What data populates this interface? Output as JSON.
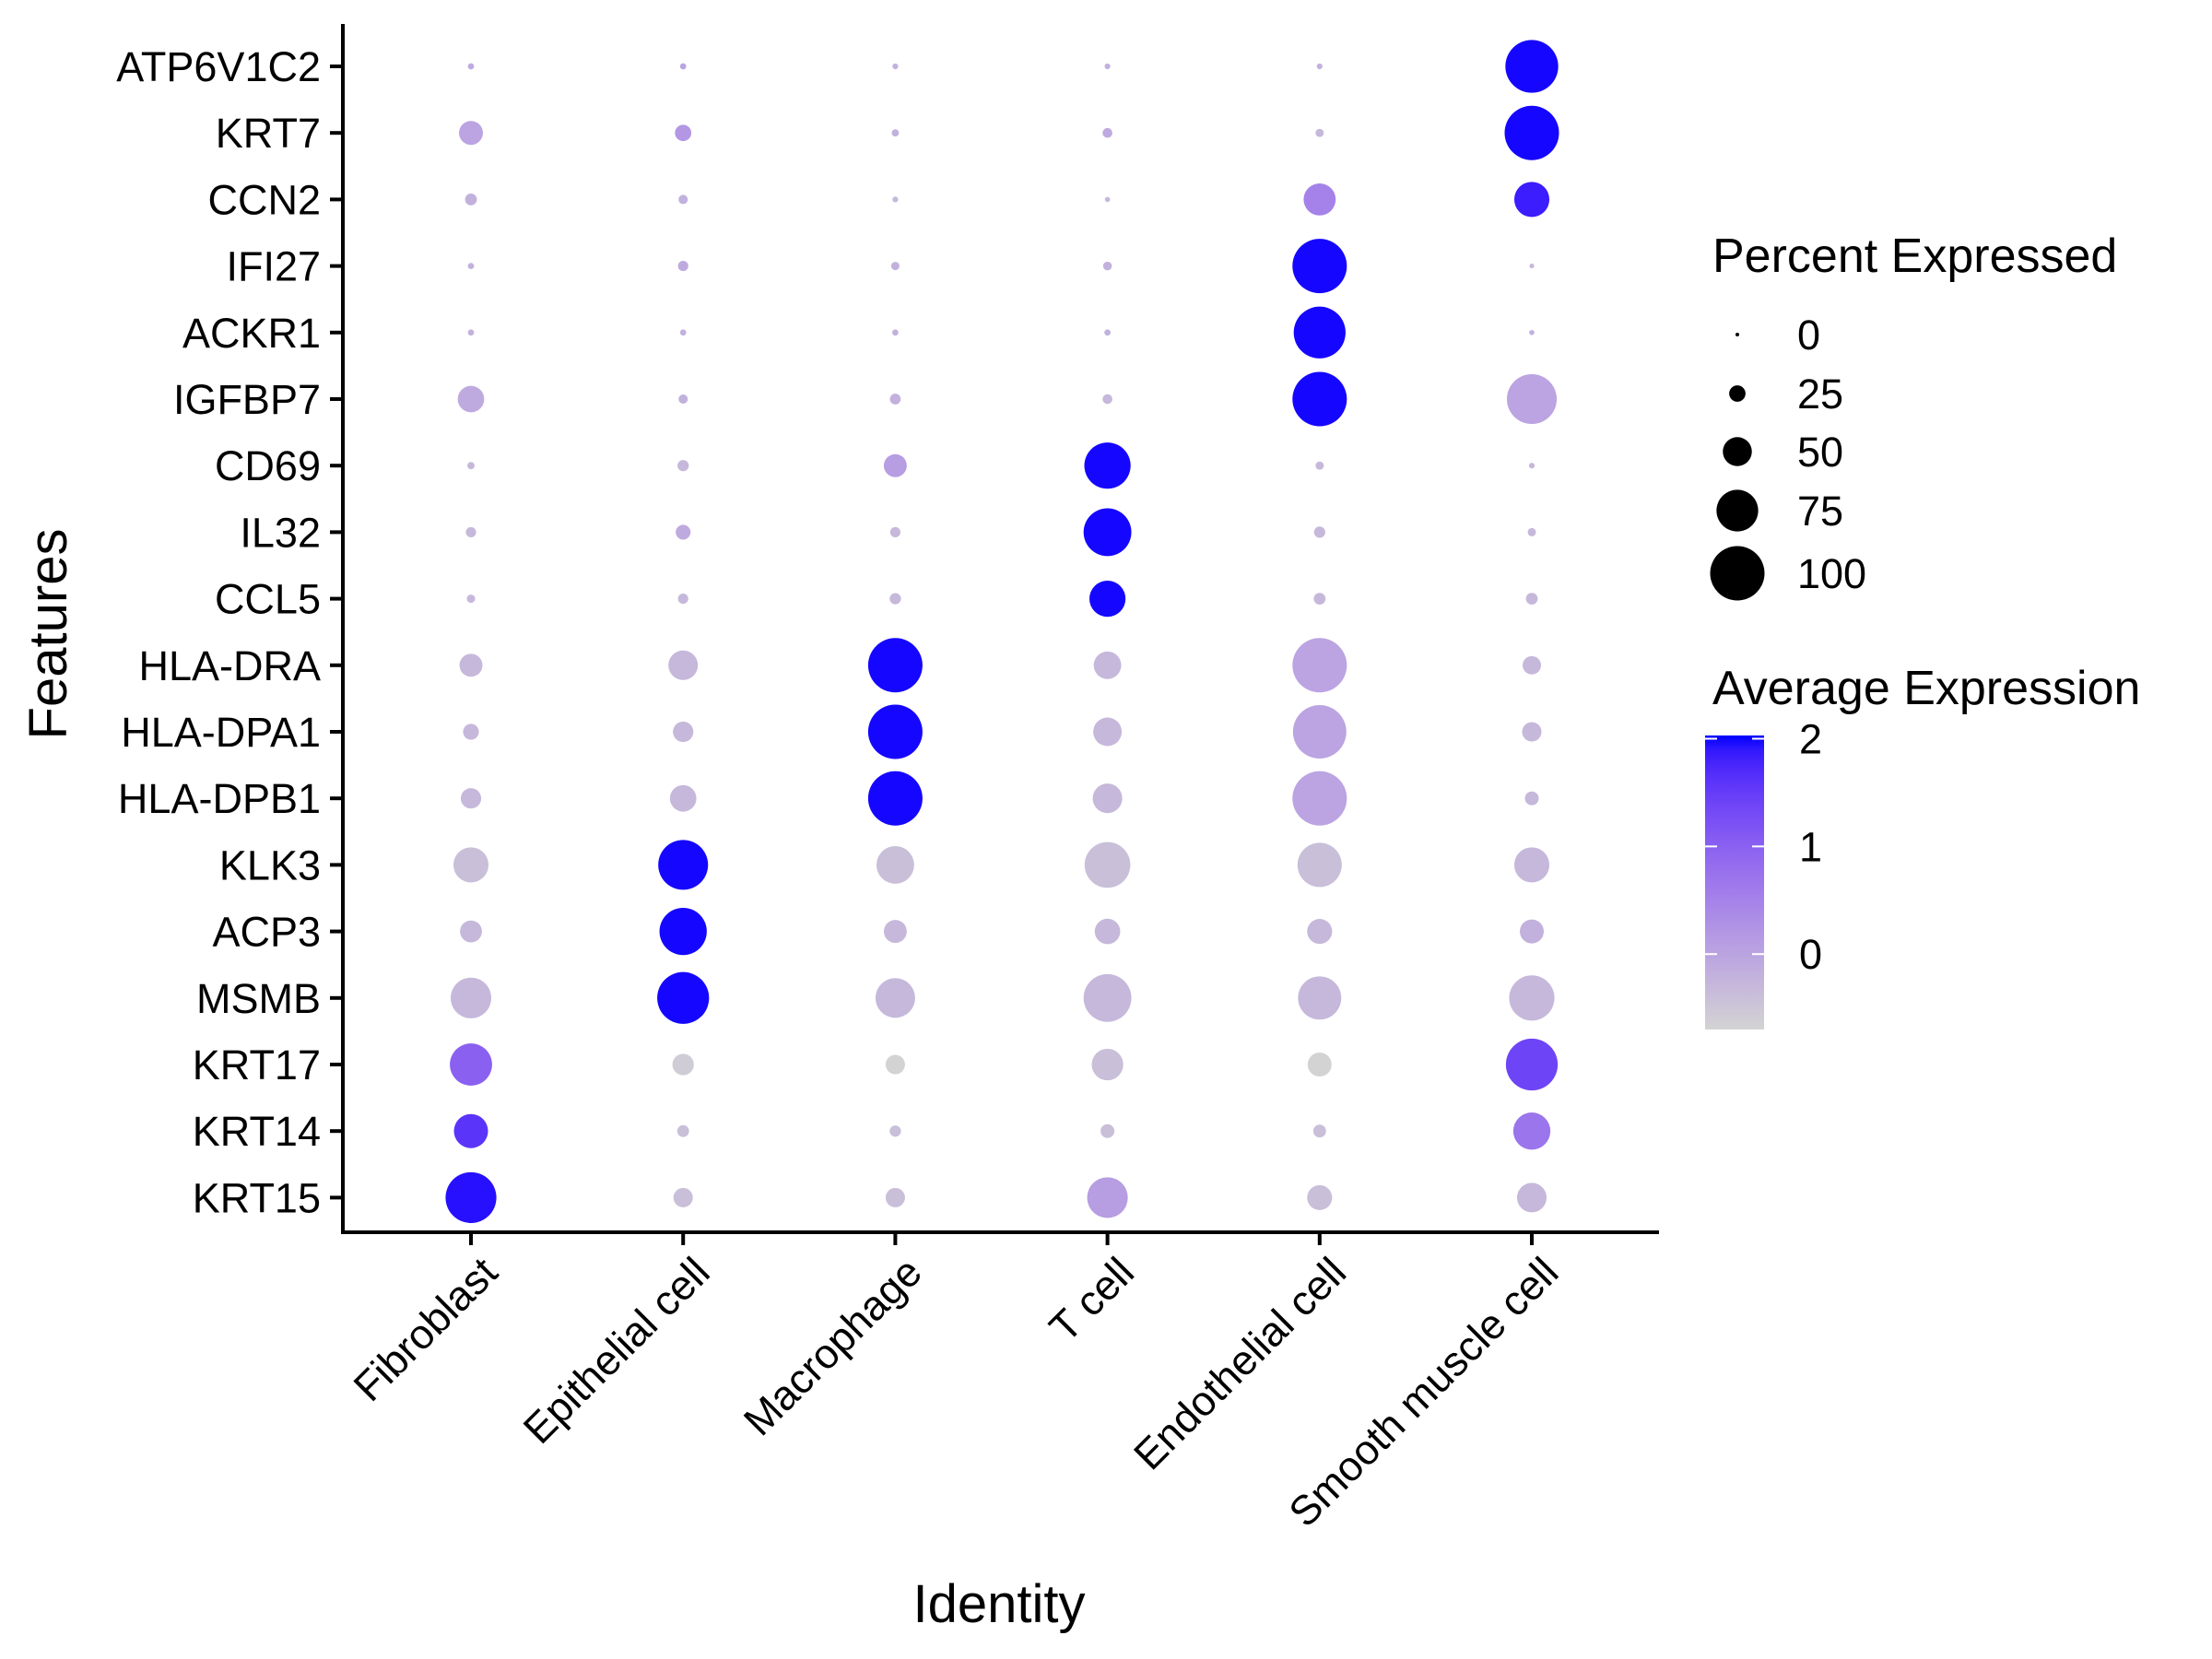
{
  "chart_data": {
    "type": "scatter",
    "subtype": "dot-plot",
    "title": "",
    "xlabel": "Identity",
    "ylabel": "Features",
    "grid": false,
    "categories": [
      "Fibroblast",
      "Epithelial cell",
      "Macrophage",
      "T cell",
      "Endothelial cell",
      "Smooth muscle cell"
    ],
    "features": [
      "ATP6V1C2",
      "KRT7",
      "CCN2",
      "IFI27",
      "ACKR1",
      "IGFBP7",
      "CD69",
      "IL32",
      "CCL5",
      "HLA-DRA",
      "HLA-DPA1",
      "HLA-DPB1",
      "KLK3",
      "ACP3",
      "MSMB",
      "KRT17",
      "KRT14",
      "KRT15"
    ],
    "percent_expressed": [
      [
        5,
        5,
        4,
        4,
        4,
        97
      ],
      [
        40,
        25,
        7,
        12,
        9,
        100
      ],
      [
        16,
        11,
        4,
        3,
        56,
        62
      ],
      [
        5,
        13,
        9,
        10,
        100,
        2
      ],
      [
        5,
        5,
        5,
        5,
        95,
        3
      ],
      [
        45,
        11,
        14,
        12,
        100,
        91
      ],
      [
        7,
        15,
        38,
        84,
        9,
        4
      ],
      [
        13,
        22,
        13,
        87,
        15,
        9
      ],
      [
        9,
        13,
        15,
        64,
        16,
        16
      ],
      [
        38,
        51,
        100,
        47,
        100,
        29
      ],
      [
        24,
        33,
        100,
        49,
        98,
        31
      ],
      [
        33,
        45,
        100,
        51,
        100,
        20
      ],
      [
        62,
        91,
        67,
        83,
        80,
        62
      ],
      [
        36,
        86,
        38,
        43,
        42,
        40
      ],
      [
        73,
        95,
        71,
        87,
        78,
        82
      ],
      [
        76,
        35,
        31,
        55,
        40,
        95
      ],
      [
        60,
        16,
        15,
        20,
        18,
        66
      ],
      [
        93,
        31,
        31,
        73,
        42,
        51
      ]
    ],
    "average_expression": [
      [
        -0.1,
        0.0,
        -0.2,
        -0.2,
        -0.2,
        2.0
      ],
      [
        0.0,
        0.2,
        -0.2,
        -0.1,
        -0.3,
        2.0
      ],
      [
        -0.2,
        -0.2,
        -0.3,
        -0.3,
        0.5,
        1.85
      ],
      [
        -0.2,
        -0.1,
        -0.2,
        -0.2,
        2.0,
        -0.3
      ],
      [
        -0.2,
        -0.2,
        -0.2,
        -0.2,
        2.0,
        -0.2
      ],
      [
        -0.1,
        -0.2,
        -0.2,
        -0.3,
        2.0,
        0.0
      ],
      [
        -0.3,
        -0.3,
        0.1,
        2.0,
        -0.3,
        -0.3
      ],
      [
        -0.3,
        -0.1,
        -0.3,
        2.0,
        -0.3,
        -0.3
      ],
      [
        -0.3,
        -0.3,
        -0.3,
        2.0,
        -0.3,
        -0.3
      ],
      [
        -0.3,
        -0.3,
        2.0,
        -0.3,
        0.0,
        -0.3
      ],
      [
        -0.3,
        -0.3,
        2.0,
        -0.3,
        0.0,
        -0.3
      ],
      [
        -0.3,
        -0.3,
        2.0,
        -0.3,
        0.0,
        -0.3
      ],
      [
        -0.4,
        2.0,
        -0.4,
        -0.4,
        -0.4,
        -0.3
      ],
      [
        -0.3,
        2.0,
        -0.3,
        -0.3,
        -0.3,
        -0.2
      ],
      [
        -0.3,
        2.0,
        -0.3,
        -0.3,
        -0.3,
        -0.3
      ],
      [
        1.0,
        -0.6,
        -0.7,
        -0.4,
        -0.7,
        1.4
      ],
      [
        1.6,
        -0.4,
        -0.4,
        -0.4,
        -0.4,
        0.7
      ],
      [
        1.95,
        -0.4,
        -0.4,
        0.1,
        -0.4,
        -0.3
      ]
    ],
    "size_legend": {
      "title": "Percent Expressed",
      "breaks": [
        0,
        25,
        50,
        75,
        100
      ],
      "labels": [
        "0",
        "25",
        "50",
        "75",
        "100"
      ],
      "range": [
        0,
        100
      ]
    },
    "color_legend": {
      "title": "Average Expression",
      "breaks": [
        2,
        1,
        0
      ],
      "labels": [
        "2",
        "1",
        "0"
      ],
      "range": [
        -0.7,
        2.03
      ],
      "low_color": "#D3D3D3",
      "high_color": "#0000FF"
    },
    "legend_position": "right"
  }
}
